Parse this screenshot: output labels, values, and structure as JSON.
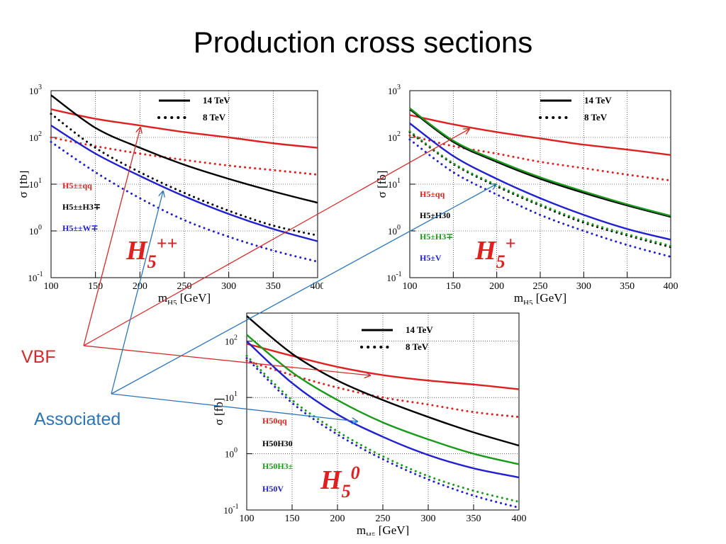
{
  "slide": {
    "title": "Production cross sections",
    "labels": {
      "vbf": "VBF",
      "associated": "Associated"
    },
    "colors": {
      "vbf": "#d42a2a",
      "associated": "#2e75b6"
    }
  },
  "chart_data": [
    {
      "type": "line",
      "title": "H5++",
      "big_label": {
        "base": "H",
        "sub": "5",
        "sup": "++"
      },
      "xlabel": "m_H5 [GeV]",
      "ylabel": "σ [fb]",
      "xlim": [
        100,
        400
      ],
      "ylim_log10": [
        -1,
        3
      ],
      "log_y": true,
      "grid": true,
      "x_ticks": [
        "100",
        "150",
        "200",
        "250",
        "300",
        "350",
        "400"
      ],
      "y_ticks": [
        {
          "base": "10",
          "exp": "-1"
        },
        {
          "base": "10",
          "exp": "0"
        },
        {
          "base": "10",
          "exp": "1"
        },
        {
          "base": "10",
          "exp": "2"
        },
        {
          "base": "10",
          "exp": "3"
        }
      ],
      "legend": [
        {
          "label": "14 TeV",
          "style": "solid"
        },
        {
          "label": "8 TeV",
          "style": "dotted"
        }
      ],
      "process_labels": [
        {
          "text": "H5±±qq",
          "color": "#e02020"
        },
        {
          "text": "H5±±H3∓",
          "color": "#000000"
        },
        {
          "text": "H5±±W∓",
          "color": "#2020d0"
        }
      ],
      "x": [
        100,
        150,
        200,
        250,
        300,
        350,
        400
      ],
      "series": [
        {
          "color": "#e02020",
          "style": "solid",
          "values": [
            400,
            250,
            180,
            130,
            100,
            75,
            60
          ]
        },
        {
          "color": "#e02020",
          "style": "dotted",
          "values": [
            100,
            65,
            45,
            33,
            25,
            20,
            16
          ]
        },
        {
          "color": "#000000",
          "style": "solid",
          "values": [
            800,
            160,
            60,
            26,
            13,
            7,
            4
          ]
        },
        {
          "color": "#000000",
          "style": "dotted",
          "values": [
            320,
            60,
            18,
            6.5,
            2.7,
            1.3,
            0.8
          ]
        },
        {
          "color": "#2020d0",
          "style": "solid",
          "values": [
            180,
            45,
            15,
            5.5,
            2.3,
            1.1,
            0.6
          ]
        },
        {
          "color": "#2020d0",
          "style": "dotted",
          "values": [
            80,
            18,
            5,
            1.7,
            0.75,
            0.38,
            0.22
          ]
        }
      ]
    },
    {
      "type": "line",
      "title": "H5+",
      "big_label": {
        "base": "H",
        "sub": "5",
        "sup": "+"
      },
      "xlabel": "m_H5 [GeV]",
      "ylabel": "σ [fb]",
      "xlim": [
        100,
        400
      ],
      "ylim_log10": [
        -1,
        3
      ],
      "log_y": true,
      "grid": true,
      "x_ticks": [
        "100",
        "150",
        "200",
        "250",
        "300",
        "350",
        "400"
      ],
      "y_ticks": [
        {
          "base": "10",
          "exp": "-1"
        },
        {
          "base": "10",
          "exp": "0"
        },
        {
          "base": "10",
          "exp": "1"
        },
        {
          "base": "10",
          "exp": "2"
        },
        {
          "base": "10",
          "exp": "3"
        }
      ],
      "legend": [
        {
          "label": "14 TeV",
          "style": "solid"
        },
        {
          "label": "8 TeV",
          "style": "dotted"
        }
      ],
      "process_labels": [
        {
          "text": "H5±qq",
          "color": "#e02020"
        },
        {
          "text": "H5±H30",
          "color": "#000000"
        },
        {
          "text": "H5±H3∓",
          "color": "#1a9a1a"
        },
        {
          "text": "H5±V",
          "color": "#2020d0"
        }
      ],
      "x": [
        100,
        150,
        200,
        250,
        300,
        350,
        400
      ],
      "series": [
        {
          "color": "#e02020",
          "style": "solid",
          "values": [
            300,
            190,
            130,
            95,
            70,
            55,
            42
          ]
        },
        {
          "color": "#e02020",
          "style": "dotted",
          "values": [
            110,
            65,
            45,
            30,
            22,
            16,
            12
          ]
        },
        {
          "color": "#000000",
          "style": "solid",
          "values": [
            400,
            80,
            30,
            13,
            6.5,
            3.5,
            2
          ]
        },
        {
          "color": "#1a9a1a",
          "style": "solid",
          "values": [
            420,
            85,
            32,
            14,
            7,
            3.7,
            2.1
          ]
        },
        {
          "color": "#000000",
          "style": "dotted",
          "values": [
            130,
            27,
            9,
            3.5,
            1.5,
            0.8,
            0.45
          ]
        },
        {
          "color": "#1a9a1a",
          "style": "dotted",
          "values": [
            135,
            28,
            9.5,
            3.7,
            1.6,
            0.85,
            0.48
          ]
        },
        {
          "color": "#2020d0",
          "style": "solid",
          "values": [
            200,
            40,
            13,
            5,
            2.2,
            1.1,
            0.65
          ]
        },
        {
          "color": "#2020d0",
          "style": "dotted",
          "values": [
            90,
            18,
            6,
            2.2,
            1,
            0.5,
            0.28
          ]
        }
      ]
    },
    {
      "type": "line",
      "title": "H50",
      "big_label": {
        "base": "H",
        "sub": "5",
        "sup": "0"
      },
      "xlabel": "m_H5 [GeV]",
      "ylabel": "σ [fb]",
      "xlim": [
        100,
        400
      ],
      "ylim_log10": [
        -1,
        2.5
      ],
      "log_y": true,
      "grid": true,
      "x_ticks": [
        "100",
        "150",
        "200",
        "250",
        "300",
        "350",
        "400"
      ],
      "y_ticks": [
        {
          "base": "10",
          "exp": "-1"
        },
        {
          "base": "10",
          "exp": "0"
        },
        {
          "base": "10",
          "exp": "1"
        },
        {
          "base": "10",
          "exp": "2"
        }
      ],
      "legend": [
        {
          "label": "14 TeV",
          "style": "solid"
        },
        {
          "label": "8 TeV",
          "style": "dotted"
        }
      ],
      "process_labels": [
        {
          "text": "H50qq",
          "color": "#e02020"
        },
        {
          "text": "H50H30",
          "color": "#000000"
        },
        {
          "text": "H50H3±",
          "color": "#1a9a1a"
        },
        {
          "text": "H50V",
          "color": "#2020d0"
        }
      ],
      "x": [
        100,
        150,
        200,
        250,
        300,
        350,
        400
      ],
      "series": [
        {
          "color": "#e02020",
          "style": "solid",
          "values": [
            90,
            55,
            35,
            25,
            20,
            17,
            14
          ]
        },
        {
          "color": "#e02020",
          "style": "dotted",
          "values": [
            45,
            25,
            15,
            10,
            7.5,
            5.5,
            4.5
          ]
        },
        {
          "color": "#000000",
          "style": "solid",
          "values": [
            280,
            60,
            20,
            9,
            4.5,
            2.4,
            1.4
          ]
        },
        {
          "color": "#1a9a1a",
          "style": "solid",
          "values": [
            130,
            28,
            9,
            3.6,
            1.8,
            1,
            0.65
          ]
        },
        {
          "color": "#2020d0",
          "style": "solid",
          "values": [
            100,
            18,
            5,
            2,
            0.95,
            0.55,
            0.38
          ]
        },
        {
          "color": "#1a9a1a",
          "style": "dotted",
          "values": [
            55,
            9,
            2.5,
            0.9,
            0.4,
            0.22,
            0.14
          ]
        },
        {
          "color": "#2020d0",
          "style": "dotted",
          "values": [
            50,
            8,
            2.2,
            0.8,
            0.35,
            0.18,
            0.11
          ]
        }
      ]
    }
  ]
}
